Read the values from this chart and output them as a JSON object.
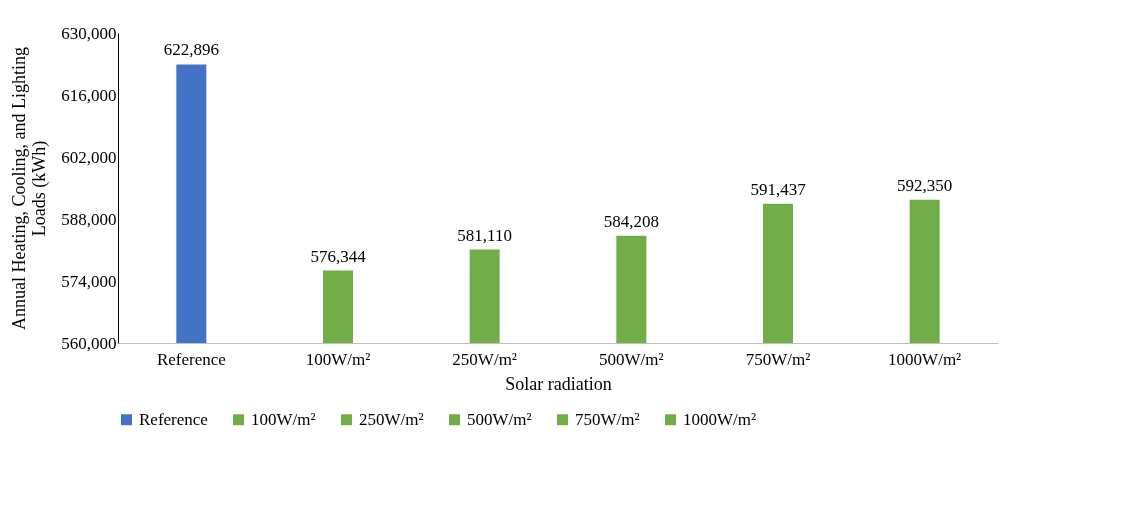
{
  "chart_data": {
    "type": "bar",
    "xlabel": "Solar radiation",
    "ylabel": "Annual Heating, Cooling, and Lighting Loads (kWh)",
    "categories": [
      "Reference",
      "100W/m²",
      "250W/m²",
      "500W/m²",
      "750W/m²",
      "1000W/m²"
    ],
    "series": [
      {
        "name": "Reference",
        "color": "#4472c4",
        "values": [
          622896,
          null,
          null,
          null,
          null,
          null
        ],
        "value_labels": [
          "622,896",
          null,
          null,
          null,
          null,
          null
        ]
      },
      {
        "name": "100W/m²",
        "color": "#70ad47",
        "values": [
          null,
          576344,
          null,
          null,
          null,
          null
        ],
        "value_labels": [
          null,
          "576,344",
          null,
          null,
          null,
          null
        ]
      },
      {
        "name": "250W/m²",
        "color": "#70ad47",
        "values": [
          null,
          null,
          581110,
          null,
          null,
          null
        ],
        "value_labels": [
          null,
          null,
          "581,110",
          null,
          null,
          null
        ]
      },
      {
        "name": "500W/m²",
        "color": "#70ad47",
        "values": [
          null,
          null,
          null,
          584208,
          null,
          null
        ],
        "value_labels": [
          null,
          null,
          null,
          "584,208",
          null,
          null
        ]
      },
      {
        "name": "750W/m²",
        "color": "#70ad47",
        "values": [
          null,
          null,
          null,
          null,
          591437,
          null
        ],
        "value_labels": [
          null,
          null,
          null,
          null,
          "591,437",
          null
        ]
      },
      {
        "name": "1000W/m²",
        "color": "#70ad47",
        "values": [
          null,
          null,
          null,
          null,
          null,
          592350
        ],
        "value_labels": [
          null,
          null,
          null,
          null,
          null,
          "592,350"
        ]
      }
    ],
    "ylim": [
      560000,
      630000
    ],
    "yticks": [
      {
        "value": 560000,
        "label": "560,000"
      },
      {
        "value": 574000,
        "label": "574,000"
      },
      {
        "value": 588000,
        "label": "588,000"
      },
      {
        "value": 602000,
        "label": "602,000"
      },
      {
        "value": 616000,
        "label": "616,000"
      },
      {
        "value": 630000,
        "label": "630,000"
      }
    ],
    "legend": "bottom",
    "grid": false
  }
}
